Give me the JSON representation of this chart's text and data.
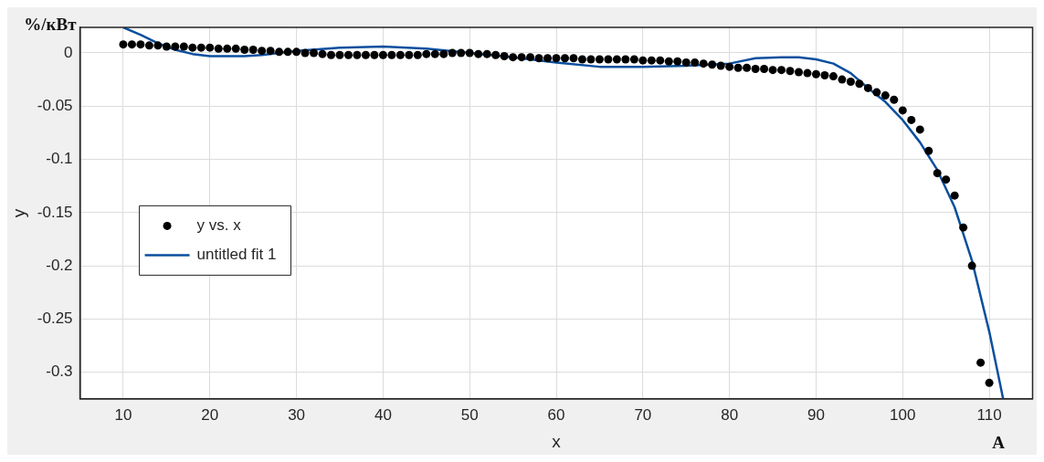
{
  "chart_data": {
    "type": "scatter",
    "xlabel": "x",
    "ylabel": "y",
    "annotations": [
      "%/кВт",
      "A"
    ],
    "xlim": [
      5,
      115
    ],
    "ylim": [
      -0.325,
      0.024
    ],
    "xticks": [
      10,
      20,
      30,
      40,
      50,
      60,
      70,
      80,
      90,
      100,
      110
    ],
    "yticks": [
      0,
      -0.05,
      -0.1,
      -0.15,
      -0.2,
      -0.25,
      -0.3
    ],
    "grid": true,
    "legend": "left",
    "series": [
      {
        "name": "y vs. x",
        "type": "scatter",
        "marker": "circle",
        "color": "#000000",
        "x": [
          10,
          11,
          12,
          13,
          14,
          15,
          16,
          17,
          18,
          19,
          20,
          21,
          22,
          23,
          24,
          25,
          26,
          27,
          28,
          29,
          30,
          31,
          32,
          33,
          34,
          35,
          36,
          37,
          38,
          39,
          40,
          41,
          42,
          43,
          44,
          45,
          46,
          47,
          48,
          49,
          50,
          51,
          52,
          53,
          54,
          55,
          56,
          57,
          58,
          59,
          60,
          61,
          62,
          63,
          64,
          65,
          66,
          67,
          68,
          69,
          70,
          71,
          72,
          73,
          74,
          75,
          76,
          77,
          78,
          79,
          80,
          81,
          82,
          83,
          84,
          85,
          86,
          87,
          88,
          89,
          90,
          91,
          92,
          93,
          94,
          95,
          96,
          97,
          98,
          99,
          100,
          101,
          102,
          103,
          104,
          105,
          106,
          107,
          108,
          109,
          110
        ],
        "values": [
          0.008,
          0.008,
          0.008,
          0.007,
          0.007,
          0.006,
          0.006,
          0.006,
          0.005,
          0.005,
          0.005,
          0.004,
          0.004,
          0.004,
          0.003,
          0.003,
          0.002,
          0.002,
          0.001,
          0.001,
          0.001,
          0,
          0,
          -0.001,
          -0.002,
          -0.002,
          -0.002,
          -0.002,
          -0.002,
          -0.002,
          -0.002,
          -0.002,
          -0.002,
          -0.002,
          -0.002,
          -0.001,
          -0.001,
          -0.001,
          0,
          0,
          0,
          -0.001,
          -0.001,
          -0.002,
          -0.003,
          -0.004,
          -0.004,
          -0.004,
          -0.005,
          -0.005,
          -0.005,
          -0.005,
          -0.005,
          -0.006,
          -0.006,
          -0.006,
          -0.006,
          -0.006,
          -0.006,
          -0.006,
          -0.007,
          -0.007,
          -0.007,
          -0.008,
          -0.008,
          -0.009,
          -0.009,
          -0.01,
          -0.011,
          -0.012,
          -0.013,
          -0.014,
          -0.014,
          -0.015,
          -0.015,
          -0.016,
          -0.016,
          -0.017,
          -0.018,
          -0.019,
          -0.02,
          -0.021,
          -0.022,
          -0.025,
          -0.027,
          -0.029,
          -0.033,
          -0.037,
          -0.04,
          -0.044,
          -0.054,
          -0.063,
          -0.072,
          -0.092,
          -0.113,
          -0.119,
          -0.134,
          -0.164,
          -0.2,
          -0.291,
          -0.31
        ]
      },
      {
        "name": "untitled fit 1",
        "type": "line",
        "marker": "none",
        "line_style": "solid",
        "color": "#0a4f9e",
        "x": [
          10,
          12,
          14,
          16,
          18,
          20,
          22,
          24,
          26,
          28,
          30,
          35,
          40,
          45,
          50,
          55,
          60,
          65,
          70,
          75,
          80,
          83,
          86,
          88,
          90,
          92,
          94,
          96,
          98,
          100,
          102,
          104,
          106,
          108,
          110,
          111.6
        ],
        "values": [
          0.024,
          0.017,
          0.009,
          0.003,
          -0.001,
          -0.003,
          -0.003,
          -0.003,
          -0.002,
          0,
          0.002,
          0.005,
          0.006,
          0.004,
          0,
          -0.004,
          -0.009,
          -0.013,
          -0.013,
          -0.012,
          -0.01,
          -0.005,
          -0.004,
          -0.004,
          -0.006,
          -0.01,
          -0.019,
          -0.033,
          -0.046,
          -0.063,
          -0.084,
          -0.11,
          -0.145,
          -0.195,
          -0.262,
          -0.325
        ]
      }
    ]
  }
}
